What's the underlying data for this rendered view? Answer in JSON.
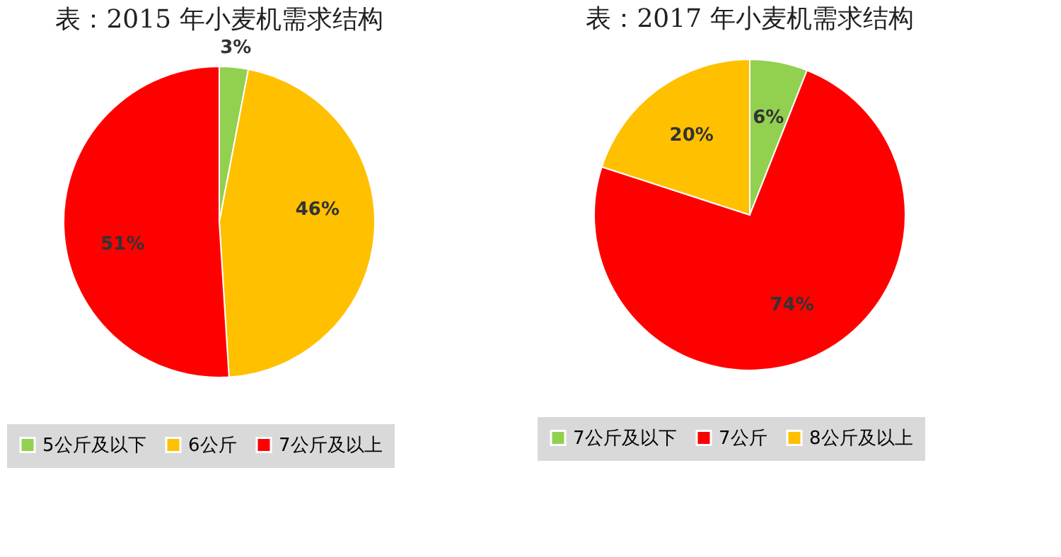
{
  "chart_data": [
    {
      "type": "pie",
      "title": "表：2015 年小麦机需求结构",
      "categories": [
        "5公斤及以下",
        "6公斤",
        "7公斤及以上"
      ],
      "values": [
        3,
        46,
        51
      ],
      "colors": [
        "#92d050",
        "#ffc000",
        "#ff0000"
      ],
      "value_labels": [
        "3%",
        "46%",
        "51%"
      ],
      "legend": "bottom"
    },
    {
      "type": "pie",
      "title": "表：2017 年小麦机需求结构",
      "categories": [
        "7公斤及以下",
        "7公斤",
        "8公斤及以上"
      ],
      "values": [
        6,
        74,
        20
      ],
      "colors": [
        "#92d050",
        "#ff0000",
        "#ffc000"
      ],
      "value_labels": [
        "6%",
        "74%",
        "20%"
      ],
      "legend": "bottom"
    }
  ]
}
